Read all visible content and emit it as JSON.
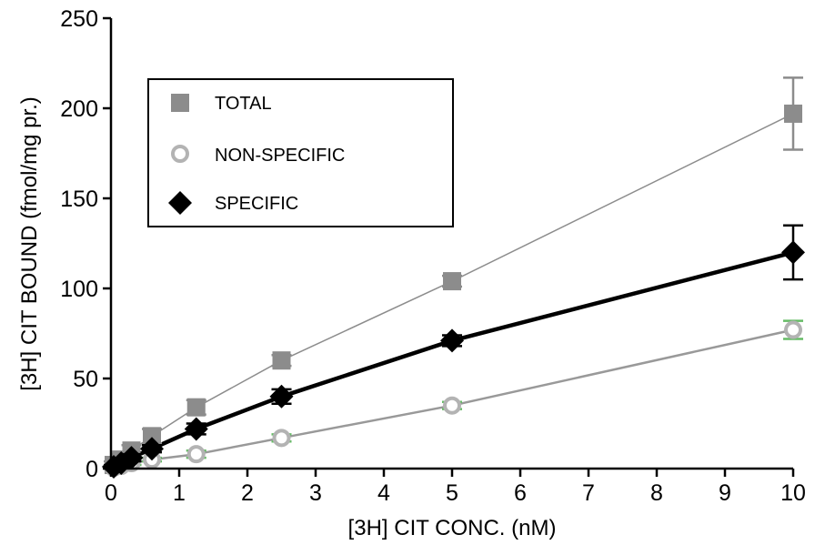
{
  "chart_data": {
    "type": "scatter",
    "title": "",
    "xlabel": "[3H] CIT CONC. (nM)",
    "ylabel": "[3H] CIT BOUND (fmol/mg pr.)",
    "xlim": [
      0,
      10
    ],
    "ylim": [
      0,
      250
    ],
    "xticks": [
      "0",
      "1",
      "2",
      "3",
      "4",
      "5",
      "6",
      "7",
      "8",
      "9",
      "10"
    ],
    "yticks": [
      "0",
      "50",
      "100",
      "150",
      "200",
      "250"
    ],
    "grid": false,
    "legend_position": "top-left",
    "series": [
      {
        "name": "TOTAL",
        "marker": "square",
        "color": "#8c8c8c",
        "line_color": "#8c8c8c",
        "x": [
          0.04,
          0.15,
          0.3,
          0.6,
          1.25,
          2.5,
          5,
          10
        ],
        "y": [
          2,
          5,
          10,
          18,
          34,
          60,
          104,
          197
        ],
        "error": [
          2,
          3,
          3,
          4,
          4,
          3,
          3,
          20
        ]
      },
      {
        "name": "NON-SPECIFIC",
        "marker": "circle-open",
        "color": "#b3b3b3",
        "line_color": "#999999",
        "error_color": "#66bb66",
        "x": [
          0.04,
          0.15,
          0.3,
          0.6,
          1.25,
          2.5,
          5,
          10
        ],
        "y": [
          0.5,
          1.5,
          3,
          5,
          8,
          17,
          35,
          77
        ],
        "error": [
          0.5,
          1,
          1,
          1,
          2,
          2,
          2,
          5
        ]
      },
      {
        "name": "SPECIFIC",
        "marker": "diamond",
        "color": "#000000",
        "line_color": "#000000",
        "x": [
          0.04,
          0.15,
          0.3,
          0.6,
          1.25,
          2.5,
          5,
          10
        ],
        "y": [
          1,
          3,
          6,
          11,
          22,
          40,
          71,
          120
        ],
        "error": [
          1,
          2,
          2,
          2,
          3,
          4,
          3,
          15
        ]
      }
    ]
  }
}
